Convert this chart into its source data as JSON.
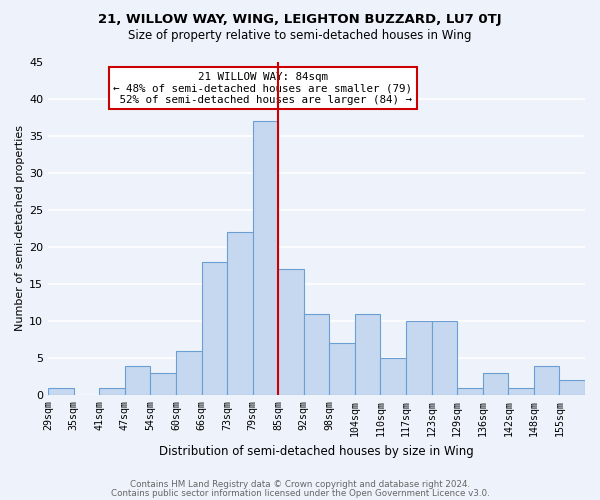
{
  "title": "21, WILLOW WAY, WING, LEIGHTON BUZZARD, LU7 0TJ",
  "subtitle": "Size of property relative to semi-detached houses in Wing",
  "xlabel": "Distribution of semi-detached houses by size in Wing",
  "ylabel": "Number of semi-detached properties",
  "bin_labels": [
    "29sqm",
    "35sqm",
    "41sqm",
    "47sqm",
    "54sqm",
    "60sqm",
    "66sqm",
    "73sqm",
    "79sqm",
    "85sqm",
    "92sqm",
    "98sqm",
    "104sqm",
    "110sqm",
    "117sqm",
    "123sqm",
    "129sqm",
    "136sqm",
    "142sqm",
    "148sqm",
    "155sqm"
  ],
  "bar_heights": [
    1,
    0,
    1,
    4,
    3,
    6,
    18,
    22,
    37,
    17,
    11,
    7,
    11,
    5,
    10,
    10,
    1,
    3,
    1,
    4,
    2
  ],
  "bar_color": "#c5d8f0",
  "bar_edge_color": "#6b9fd4",
  "vline_position": 9,
  "property_label": "21 WILLOW WAY: 84sqm",
  "pct_smaller": 48,
  "pct_larger": 52,
  "count_smaller": 79,
  "count_larger": 84,
  "ylim": [
    0,
    45
  ],
  "yticks": [
    0,
    5,
    10,
    15,
    20,
    25,
    30,
    35,
    40,
    45
  ],
  "vline_color": "#cc0000",
  "annotation_box_color": "#cc0000",
  "background_color": "#eef3fb",
  "grid_color": "#ffffff",
  "footer_line1": "Contains HM Land Registry data © Crown copyright and database right 2024.",
  "footer_line2": "Contains public sector information licensed under the Open Government Licence v3.0."
}
